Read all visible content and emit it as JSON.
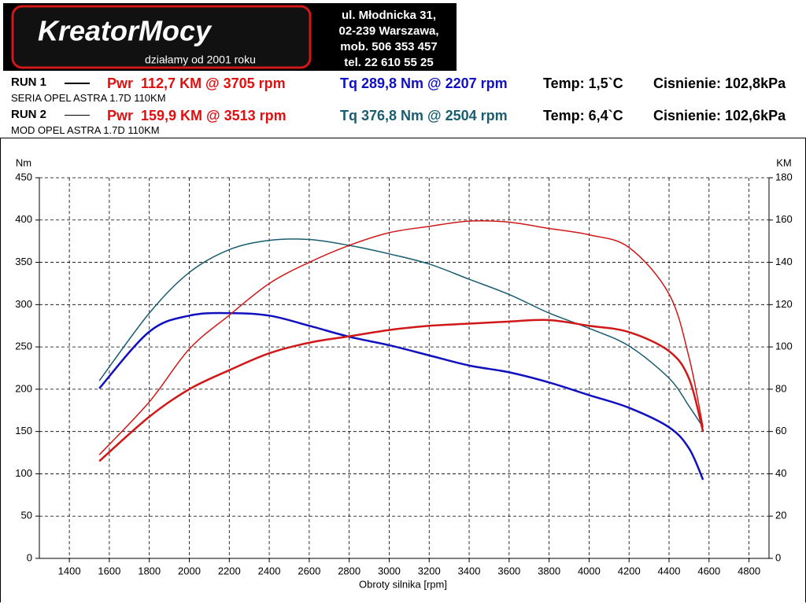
{
  "header": {
    "logo": "KreatorMocy",
    "slogan": "działamy od 2001 roku",
    "address": [
      "ul. Młodnicka 31,",
      "02-239  Warszawa,",
      "mob.  506 353 457",
      "tel.  22 610 55 25"
    ]
  },
  "runs": [
    {
      "label": "RUN 1",
      "description": "SERIA OPEL ASTRA 1.7D 110KM",
      "power": "Pwr  112,7 KM @ 3705 rpm",
      "torque": "Tq 289,8 Nm @ 2207 rpm",
      "temp": "Temp: 1,5`C",
      "pressure": "Cisnienie: 102,8kPa",
      "torque_color": "#1010c0"
    },
    {
      "label": "RUN 2",
      "description": "MOD OPEL ASTRA 1.7D 110KM",
      "power": "Pwr  159,9 KM @ 3513 rpm",
      "torque": "Tq 376,8 Nm @ 2504 rpm",
      "temp": "Temp: 6,4`C",
      "pressure": "Cisnienie: 102,6kPa",
      "torque_color": "#1a5c70"
    }
  ],
  "chart_data": {
    "type": "line",
    "ylabel": "Nm",
    "y2label": "KM",
    "xlabel": "Obroty silnika [rpm]",
    "x": [
      1550,
      1800,
      2000,
      2200,
      2400,
      2600,
      2800,
      3000,
      3200,
      3400,
      3600,
      3800,
      4000,
      4200,
      4400,
      4500,
      4570
    ],
    "series": [
      {
        "color": "#1010c0",
        "line_width": 2.5,
        "values": [
          201,
          268,
          287,
          290,
          287,
          275,
          262,
          252,
          240,
          228,
          220,
          208,
          193,
          178,
          155,
          130,
          93
        ]
      },
      {
        "color": "#1a5c70",
        "line_width": 1.5,
        "values": [
          210,
          290,
          338,
          365,
          376,
          377,
          370,
          360,
          348,
          330,
          312,
          290,
          272,
          251,
          213,
          180,
          155
        ]
      },
      {
        "color": "#d01818",
        "line_width": 2.5,
        "axis": "y2",
        "values": [
          46,
          67,
          80,
          89,
          97,
          102,
          105,
          108,
          110,
          111,
          112,
          112.7,
          110,
          107,
          98,
          85,
          60
        ]
      },
      {
        "color": "#d01818",
        "line_width": 1.5,
        "axis": "y2",
        "values": [
          49,
          74,
          99,
          115,
          130,
          140,
          148,
          154,
          157,
          159.5,
          159,
          156,
          153,
          147,
          125,
          95,
          62
        ]
      }
    ],
    "xlim": [
      1250,
      4900
    ],
    "ylim": [
      0,
      450
    ],
    "y2lim": [
      0,
      180
    ],
    "xticks": [
      1400,
      1600,
      1800,
      2000,
      2200,
      2400,
      2600,
      2800,
      3000,
      3200,
      3400,
      3600,
      3800,
      4000,
      4200,
      4400,
      4600,
      4800
    ],
    "yticks": [
      0,
      50,
      100,
      150,
      200,
      250,
      300,
      350,
      400,
      450
    ],
    "y2ticks": [
      0,
      20,
      40,
      60,
      80,
      100,
      120,
      140,
      160,
      180
    ],
    "grid": true
  }
}
